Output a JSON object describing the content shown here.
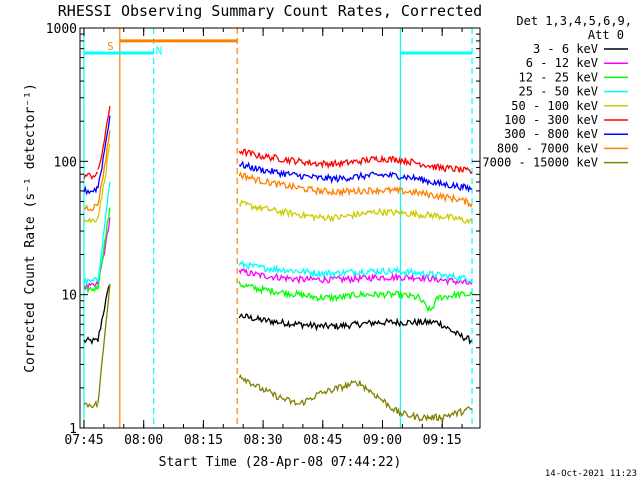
{
  "chart_data": {
    "type": "line",
    "title": "RHESSI Observing Summary Count Rates, Corrected",
    "xlabel": "Start Time (28-Apr-08 07:44:22)",
    "ylabel": "Corrected Count Rate (s⁻¹ detector⁻¹)",
    "x_range_minutes_after_0744": [
      0,
      100.5
    ],
    "yscale": "log",
    "ylim": [
      1,
      1000
    ],
    "x_ticks": [
      {
        "label": "07:45",
        "minute": 1
      },
      {
        "label": "08:00",
        "minute": 16
      },
      {
        "label": "08:15",
        "minute": 31
      },
      {
        "label": "08:30",
        "minute": 46
      },
      {
        "label": "08:45",
        "minute": 61
      },
      {
        "label": "09:00",
        "minute": 76
      },
      {
        "label": "09:15",
        "minute": 91
      }
    ],
    "y_ticks": [
      {
        "label": "1",
        "value": 1
      },
      {
        "label": "10",
        "value": 10
      },
      {
        "label": "100",
        "value": 100
      },
      {
        "label": "1000",
        "value": 1000
      }
    ],
    "legend": {
      "position": "top-right",
      "header": [
        "Det 1,3,4,5,6,9,",
        "Att 0"
      ]
    },
    "series": [
      {
        "name": "3 - 6 keV",
        "color": "#000000",
        "segments": [
          {
            "x": [
              1,
              2,
              3,
              4,
              4.5
            ],
            "y": [
              4.5,
              4.5,
              4.5,
              4.5,
              4.5
            ]
          },
          {
            "x": [
              4.5,
              5.5,
              6.5,
              7.5
            ],
            "y": [
              4.5,
              6.5,
              9,
              12
            ]
          },
          {
            "x": [
              40,
              45,
              50,
              55,
              60,
              65,
              70,
              75,
              80,
              85,
              90,
              95,
              98.5
            ],
            "y": [
              7,
              6.5,
              6.2,
              6,
              5.8,
              5.8,
              6,
              6.2,
              6.2,
              6.2,
              6.2,
              5,
              4.5
            ]
          }
        ]
      },
      {
        "name": "6 - 12 keV",
        "color": "#ff00ff",
        "segments": [
          {
            "x": [
              1,
              2,
              3,
              4,
              4.5
            ],
            "y": [
              11.5,
              11.5,
              11.5,
              11.8,
              12
            ]
          },
          {
            "x": [
              4.5,
              5.5,
              6.5,
              7.5
            ],
            "y": [
              12,
              17,
              24,
              38
            ]
          },
          {
            "x": [
              40,
              45,
              50,
              55,
              60,
              65,
              70,
              75,
              80,
              85,
              90,
              95,
              98.5
            ],
            "y": [
              15,
              14,
              13.5,
              13,
              13,
              13,
              13.2,
              13.5,
              13.5,
              13.5,
              13,
              12.5,
              12
            ]
          }
        ]
      },
      {
        "name": "12 - 25 keV",
        "color": "#00ff00",
        "segments": [
          {
            "x": [
              1,
              2,
              3,
              4,
              4.5
            ],
            "y": [
              11,
              11,
              11,
              11.2,
              11.5
            ]
          },
          {
            "x": [
              4.5,
              5.5,
              6.5,
              7.5
            ],
            "y": [
              11.5,
              18,
              28,
              45
            ]
          },
          {
            "x": [
              40,
              45,
              50,
              55,
              60,
              65,
              70,
              75,
              80,
              85,
              88,
              90,
              95,
              98.5
            ],
            "y": [
              12,
              11,
              10.5,
              10,
              9.5,
              9.5,
              10,
              10,
              10,
              9.5,
              7.5,
              9.5,
              10,
              10
            ]
          }
        ]
      },
      {
        "name": "25 - 50 keV",
        "color": "#00ffff",
        "segments": [
          {
            "x": [
              1,
              2,
              3,
              4,
              4.5
            ],
            "y": [
              12.5,
              12.5,
              12.5,
              12.8,
              13
            ]
          },
          {
            "x": [
              4.5,
              5.5,
              6.5,
              7.5
            ],
            "y": [
              13,
              22,
              40,
              70
            ]
          },
          {
            "x": [
              40,
              45,
              50,
              55,
              60,
              65,
              70,
              75,
              80,
              85,
              90,
              95,
              98.5
            ],
            "y": [
              17,
              16,
              15.5,
              15,
              14.5,
              14.5,
              15,
              15,
              15,
              14.5,
              14,
              13.5,
              13
            ]
          }
        ]
      },
      {
        "name": "50 - 100 keV",
        "color": "#cccc00",
        "segments": [
          {
            "x": [
              1,
              2,
              3,
              4,
              4.5
            ],
            "y": [
              36,
              36,
              36,
              37,
              38
            ]
          },
          {
            "x": [
              4.5,
              5.5,
              6.5,
              7.5
            ],
            "y": [
              38,
              55,
              85,
              135
            ]
          },
          {
            "x": [
              40,
              45,
              50,
              55,
              60,
              65,
              70,
              75,
              80,
              85,
              90,
              95,
              98.5
            ],
            "y": [
              48,
              45,
              42,
              40,
              38,
              38,
              40,
              42,
              41,
              40,
              39,
              37,
              35
            ]
          }
        ]
      },
      {
        "name": "100 - 300 keV",
        "color": "#ff0000",
        "segments": [
          {
            "x": [
              1,
              2,
              3,
              4,
              4.5
            ],
            "y": [
              78,
              78,
              78,
              80,
              82
            ]
          },
          {
            "x": [
              4.5,
              5.5,
              6.5,
              7.5
            ],
            "y": [
              82,
              115,
              165,
              260
            ]
          },
          {
            "x": [
              40,
              45,
              50,
              55,
              60,
              65,
              70,
              75,
              80,
              85,
              90,
              95,
              98.5
            ],
            "y": [
              120,
              110,
              105,
              100,
              96,
              96,
              100,
              105,
              103,
              97,
              90,
              87,
              83
            ]
          }
        ]
      },
      {
        "name": "300 - 800 keV",
        "color": "#0000ff",
        "segments": [
          {
            "x": [
              1,
              2,
              3,
              4,
              4.5
            ],
            "y": [
              60,
              60,
              60,
              62,
              64
            ]
          },
          {
            "x": [
              4.5,
              5.5,
              6.5,
              7.5
            ],
            "y": [
              64,
              92,
              140,
              220
            ]
          },
          {
            "x": [
              40,
              45,
              50,
              55,
              60,
              65,
              70,
              75,
              80,
              85,
              90,
              95,
              98.5
            ],
            "y": [
              95,
              87,
              82,
              78,
              75,
              74,
              77,
              79,
              78,
              74,
              68,
              65,
              62
            ]
          }
        ]
      },
      {
        "name": "800 - 7000 keV",
        "color": "#ff8000",
        "segments": [
          {
            "x": [
              1,
              2,
              3,
              4,
              4.5
            ],
            "y": [
              45,
              45,
              45,
              46,
              48
            ]
          },
          {
            "x": [
              4.5,
              5.5,
              6.5,
              7.5
            ],
            "y": [
              48,
              70,
              105,
              170
            ]
          },
          {
            "x": [
              40,
              45,
              50,
              55,
              60,
              65,
              70,
              75,
              80,
              85,
              90,
              95,
              98.5
            ],
            "y": [
              80,
              72,
              67,
              63,
              60,
              59,
              60,
              61,
              60,
              58,
              55,
              52,
              48
            ]
          }
        ]
      },
      {
        "name": "7000 - 15000 keV",
        "color": "#808000",
        "segments": [
          {
            "x": [
              1,
              2,
              3,
              4,
              4.5
            ],
            "y": [
              1.5,
              1.5,
              1.5,
              1.5,
              1.5
            ]
          },
          {
            "x": [
              4.5,
              5.5,
              6.5,
              7.5
            ],
            "y": [
              1.5,
              3,
              6,
              12
            ]
          },
          {
            "x": [
              40,
              45,
              50,
              55,
              60,
              65,
              70,
              75,
              80,
              85,
              90,
              95,
              98.5
            ],
            "y": [
              2.5,
              2,
              1.7,
              1.5,
              1.8,
              2,
              2.2,
              1.7,
              1.3,
              1.2,
              1.2,
              1.3,
              1.4
            ]
          }
        ]
      }
    ],
    "flag_bars": [
      {
        "label": "",
        "color": "#00ffff",
        "y_value": 650,
        "spans": [
          [
            1,
            18.5
          ],
          [
            80.5,
            98.5
          ]
        ]
      },
      {
        "label": "",
        "color": "#ff8000",
        "y_value": 800,
        "spans": [
          [
            10,
            39.5
          ]
        ]
      }
    ],
    "flag_labels": [
      {
        "label": "S",
        "color": "#ff8000",
        "minute": 7.8,
        "y_value": 730
      },
      {
        "label": "N",
        "color": "#00ffff",
        "minute": 20,
        "y_value": 680
      }
    ],
    "vertical_markers": [
      {
        "minute": 1,
        "color": "#00ffff",
        "style": "solid"
      },
      {
        "minute": 10,
        "color": "#ff8000",
        "style": "solid"
      },
      {
        "minute": 18.5,
        "color": "#00ffff",
        "style": "dashed"
      },
      {
        "minute": 39.5,
        "color": "#ff8000",
        "style": "dashed"
      },
      {
        "minute": 80.5,
        "color": "#00ffff",
        "style": "solid"
      },
      {
        "minute": 98.5,
        "color": "#00ffff",
        "style": "dashed"
      }
    ],
    "timestamp": "14-Oct-2021 11:23"
  }
}
